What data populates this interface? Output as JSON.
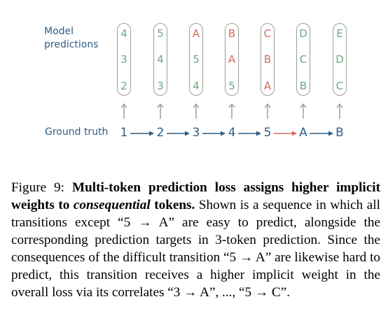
{
  "diagram": {
    "label_model": "Model\npredictions",
    "label_truth": "Ground truth",
    "colors": {
      "easy": "#6aa97c",
      "hard": "#d26b5a",
      "label": "#2f5e86",
      "pill_border": "#9e9e9e",
      "arrow": "#a0a0a0"
    },
    "columns": [
      {
        "tokens": [
          {
            "text": "4",
            "status": "easy"
          },
          {
            "text": "3",
            "status": "easy"
          },
          {
            "text": "2",
            "status": "easy"
          }
        ]
      },
      {
        "tokens": [
          {
            "text": "5",
            "status": "easy"
          },
          {
            "text": "4",
            "status": "easy"
          },
          {
            "text": "3",
            "status": "easy"
          }
        ]
      },
      {
        "tokens": [
          {
            "text": "A",
            "status": "hard"
          },
          {
            "text": "5",
            "status": "easy"
          },
          {
            "text": "4",
            "status": "easy"
          }
        ]
      },
      {
        "tokens": [
          {
            "text": "B",
            "status": "hard"
          },
          {
            "text": "A",
            "status": "hard"
          },
          {
            "text": "5",
            "status": "easy"
          }
        ]
      },
      {
        "tokens": [
          {
            "text": "C",
            "status": "hard"
          },
          {
            "text": "B",
            "status": "hard"
          },
          {
            "text": "A",
            "status": "hard"
          }
        ]
      },
      {
        "tokens": [
          {
            "text": "D",
            "status": "easy"
          },
          {
            "text": "C",
            "status": "easy"
          },
          {
            "text": "B",
            "status": "easy"
          }
        ]
      },
      {
        "tokens": [
          {
            "text": "E",
            "status": "easy"
          },
          {
            "text": "D",
            "status": "easy"
          },
          {
            "text": "C",
            "status": "easy"
          }
        ]
      }
    ],
    "ground_truth": [
      "1",
      "2",
      "3",
      "4",
      "5",
      "A",
      "B"
    ],
    "transition_status": [
      "easy",
      "easy",
      "easy",
      "easy",
      "hard",
      "easy"
    ]
  },
  "caption": {
    "prefix": "Figure 9: ",
    "bold_a": "Multi-token prediction loss assigns higher implicit weights to ",
    "bold_italic": "consequential",
    "bold_b": " tokens.",
    "text": " Shown is a sequence in which all transitions except “5 → A” are easy to predict, alongside the corresponding prediction targets in 3-token prediction. Since the consequences of the difficult transition “5 → A” are likewise hard to predict, this transition receives a higher implicit weight in the overall loss via its correlates “3 → A”, ..., “5 → C”."
  }
}
